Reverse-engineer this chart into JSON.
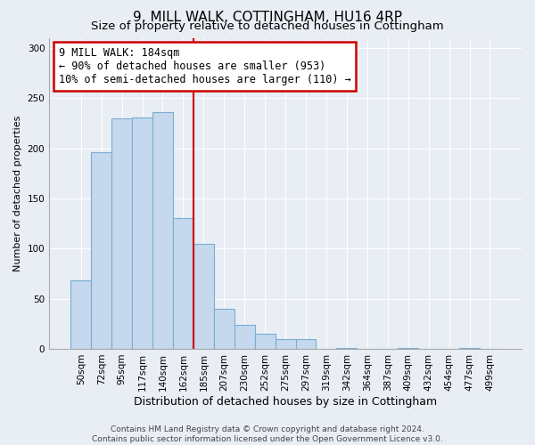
{
  "title": "9, MILL WALK, COTTINGHAM, HU16 4RP",
  "subtitle": "Size of property relative to detached houses in Cottingham",
  "xlabel": "Distribution of detached houses by size in Cottingham",
  "ylabel": "Number of detached properties",
  "bar_labels": [
    "50sqm",
    "72sqm",
    "95sqm",
    "117sqm",
    "140sqm",
    "162sqm",
    "185sqm",
    "207sqm",
    "230sqm",
    "252sqm",
    "275sqm",
    "297sqm",
    "319sqm",
    "342sqm",
    "364sqm",
    "387sqm",
    "409sqm",
    "432sqm",
    "454sqm",
    "477sqm",
    "499sqm"
  ],
  "bar_values": [
    68,
    196,
    230,
    231,
    236,
    130,
    105,
    40,
    24,
    15,
    10,
    10,
    0,
    1,
    0,
    0,
    1,
    0,
    0,
    1,
    0
  ],
  "bar_color": "#c5d8ed",
  "bar_edge_color": "#7aadd4",
  "vline_x_index": 6,
  "vline_color": "#cc0000",
  "annotation_text": "9 MILL WALK: 184sqm\n← 90% of detached houses are smaller (953)\n10% of semi-detached houses are larger (110) →",
  "annotation_box_edgecolor": "#cc0000",
  "annotation_box_facecolor": "white",
  "ylim": [
    0,
    310
  ],
  "yticks": [
    0,
    50,
    100,
    150,
    200,
    250,
    300
  ],
  "footer_line1": "Contains HM Land Registry data © Crown copyright and database right 2024.",
  "footer_line2": "Contains public sector information licensed under the Open Government Licence v3.0.",
  "background_color": "#e8eef4",
  "plot_bg_color": "#e8eef4",
  "grid_color": "#ffffff",
  "title_fontsize": 11,
  "subtitle_fontsize": 9.5,
  "xlabel_fontsize": 9,
  "ylabel_fontsize": 8,
  "tick_fontsize": 7.5,
  "annotation_fontsize": 8.5,
  "footer_fontsize": 6.5
}
